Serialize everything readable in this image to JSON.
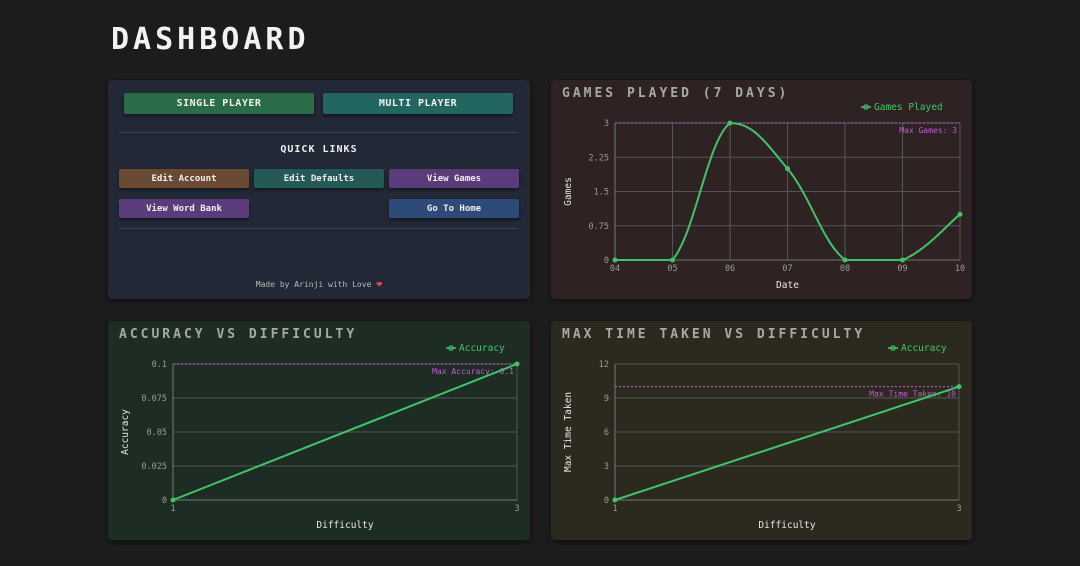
{
  "page": {
    "title": "DASHBOARD"
  },
  "menu": {
    "single_player": "SINGLE PLAYER",
    "multi_player": "MULTI PLAYER",
    "quick_links_title": "QUICK LINKS",
    "links": [
      {
        "label": "Edit Account",
        "color": "#6b4a33"
      },
      {
        "label": "Edit Defaults",
        "color": "#235a55"
      },
      {
        "label": "View Games",
        "color": "#5a3c7a"
      },
      {
        "label": "View Word Bank",
        "color": "#5a3c7a"
      },
      {
        "label": "Go To Home",
        "color": "#2d4a78"
      }
    ],
    "footer_text": "Made by Arinji with Love",
    "colors": {
      "single_player": "#2a6b48",
      "multi_player": "#236660"
    }
  },
  "charts": {
    "games": {
      "title": "GAMES PLAYED (7 DAYS)",
      "chart_data": {
        "type": "line",
        "x": [
          "04",
          "05",
          "06",
          "07",
          "08",
          "09",
          "10"
        ],
        "series": [
          {
            "name": "Games Played",
            "values": [
              0,
              0,
              3,
              2,
              0,
              0,
              1
            ]
          }
        ],
        "xlabel": "Date",
        "ylabel": "Games",
        "yticks": [
          "0",
          "0.75",
          "1.5",
          "2.25",
          "3"
        ],
        "ylim": [
          0,
          3
        ],
        "reference_line": {
          "value": 3,
          "label": "Max Games: 3"
        },
        "legend": "top-right",
        "grid": true,
        "line_color": "#3ec46a"
      }
    },
    "accuracy": {
      "title": "ACCURACY VS DIFFICULTY",
      "chart_data": {
        "type": "line",
        "x": [
          "1",
          "3"
        ],
        "series": [
          {
            "name": "Accuracy",
            "values": [
              0,
              0.1
            ]
          }
        ],
        "xlabel": "Difficulty",
        "ylabel": "Accuracy",
        "yticks": [
          "0",
          "0.025",
          "0.05",
          "0.075",
          "0.1"
        ],
        "ylim": [
          0,
          0.1
        ],
        "reference_line": {
          "value": 0.1,
          "label": "Max Accuracy: 0.1"
        },
        "legend": "top-right",
        "grid": true,
        "line_color": "#3ec46a"
      }
    },
    "time": {
      "title": "MAX TIME TAKEN VS DIFFICULTY",
      "chart_data": {
        "type": "line",
        "x": [
          "1",
          "3"
        ],
        "series": [
          {
            "name": "Accuracy",
            "values": [
              0,
              10
            ]
          }
        ],
        "xlabel": "Difficulty",
        "ylabel": "Max Time Taken",
        "yticks": [
          "0",
          "3",
          "6",
          "9",
          "12"
        ],
        "ylim": [
          0,
          12
        ],
        "reference_line": {
          "value": 10,
          "label": "Max Time Taken: 10"
        },
        "legend": "top-right",
        "grid": true,
        "line_color": "#3ec46a"
      }
    }
  }
}
